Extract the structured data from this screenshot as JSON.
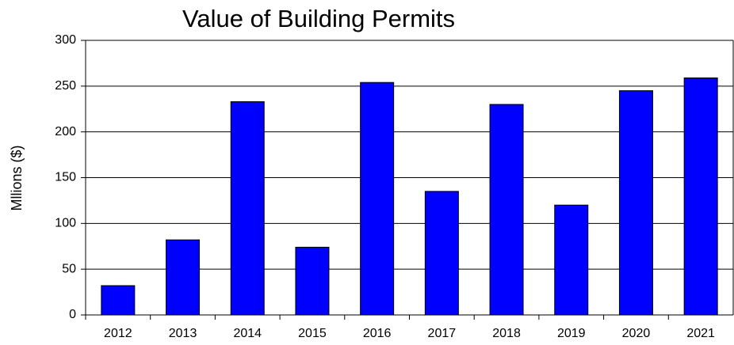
{
  "chart_data": {
    "type": "bar",
    "title": "Value of Building Permits",
    "y_label": "Mllions ($)",
    "categories": [
      "2012",
      "2013",
      "2014",
      "2015",
      "2016",
      "2017",
      "2018",
      "2019",
      "2020",
      "2021"
    ],
    "values": [
      32,
      82,
      233,
      74,
      254,
      135,
      230,
      120,
      245,
      259
    ],
    "color": "#0000ff",
    "ylim": [
      0,
      300
    ],
    "yticks": [
      0,
      50,
      100,
      150,
      200,
      250,
      300
    ],
    "grid": true
  }
}
